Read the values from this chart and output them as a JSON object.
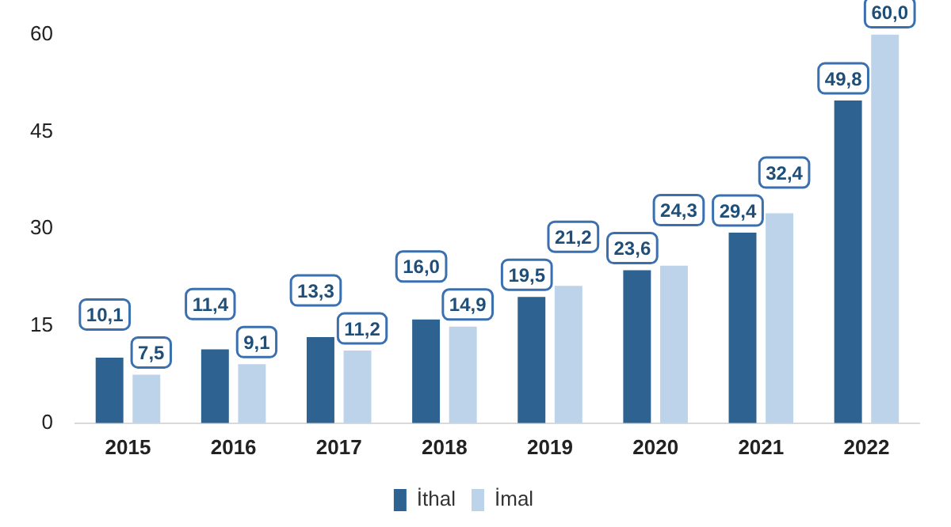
{
  "chart_data": {
    "type": "bar",
    "categories": [
      "2015",
      "2016",
      "2017",
      "2018",
      "2019",
      "2020",
      "2021",
      "2022"
    ],
    "series": [
      {
        "name": "İthal",
        "color": "#2e6290",
        "values": [
          10.1,
          11.4,
          13.3,
          16.0,
          19.5,
          23.6,
          29.4,
          49.8
        ],
        "value_labels": [
          "10,1",
          "11,4",
          "13,3",
          "16,0",
          "19,5",
          "23,6",
          "29,4",
          "49,8"
        ]
      },
      {
        "name": "İmal",
        "color": "#bcd3ea",
        "values": [
          7.5,
          9.1,
          11.2,
          14.9,
          21.2,
          24.3,
          32.4,
          60.0
        ],
        "value_labels": [
          "7,5",
          "9,1",
          "11,2",
          "14,9",
          "21,2",
          "24,3",
          "32,4",
          "60,0"
        ]
      }
    ],
    "ylim": [
      0,
      60
    ],
    "yticks": [
      0,
      15,
      30,
      45,
      60
    ],
    "grid": false,
    "legend": "bottom"
  }
}
